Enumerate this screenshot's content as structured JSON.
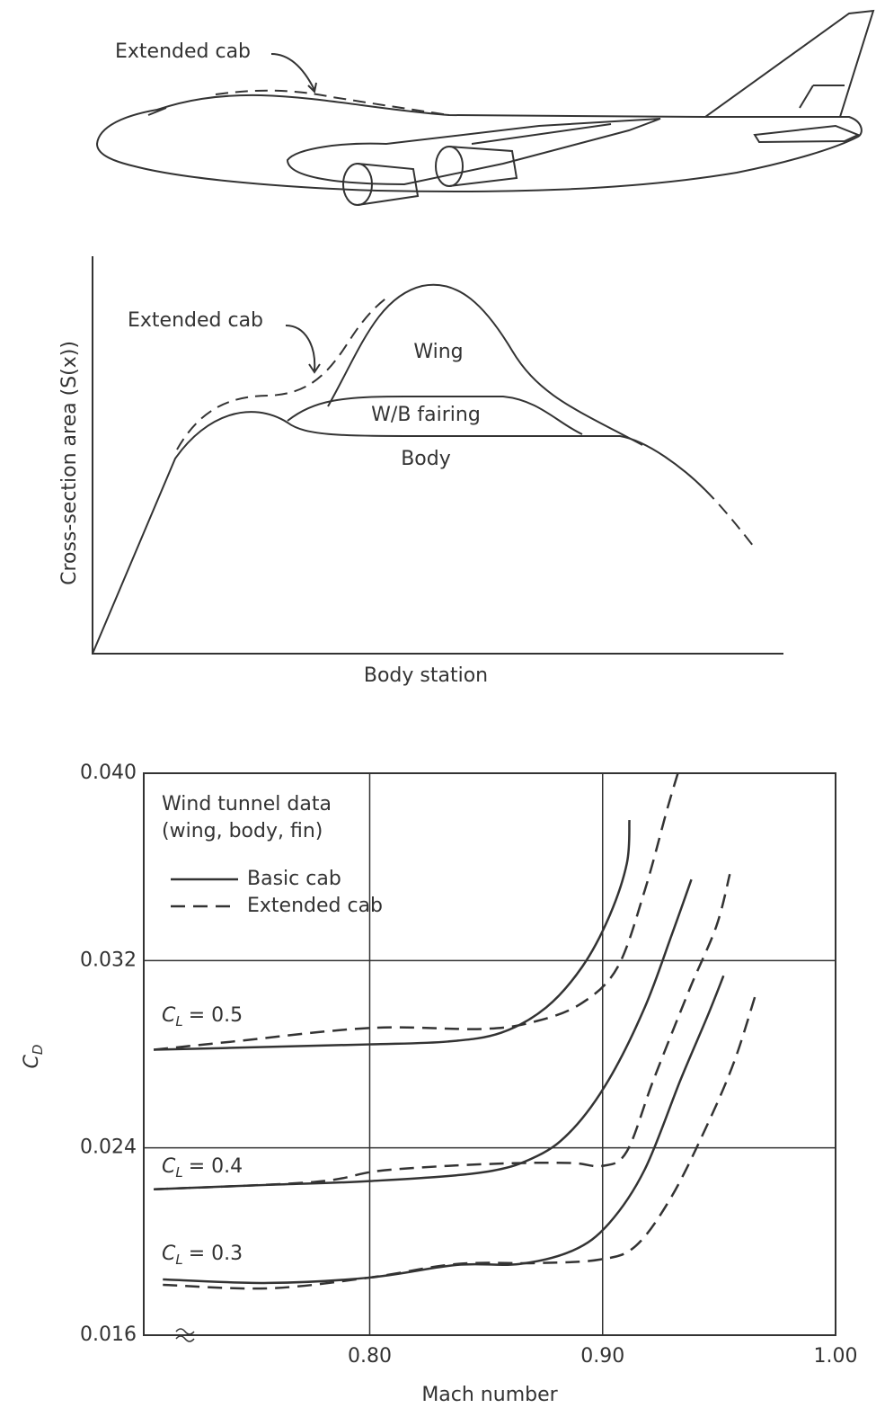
{
  "aircraft": {
    "label": "Extended cab"
  },
  "area_diagram": {
    "y_label": "Cross-section area (S(x))",
    "x_label": "Body station",
    "labels": {
      "extended_cab": "Extended cab",
      "wing": "Wing",
      "fairing": "W/B fairing",
      "body": "Body"
    }
  },
  "chart_data": {
    "type": "line",
    "x_label": "Mach number",
    "y_label": {
      "symbol": "C",
      "subscript": "D"
    },
    "annotation": [
      "Wind tunnel data",
      "(wing, body, fin)"
    ],
    "xlim": [
      0.703,
      1.0
    ],
    "ylim": [
      0.016,
      0.04
    ],
    "xticks": [
      {
        "value": 0.8,
        "label": "0.80"
      },
      {
        "value": 0.9,
        "label": "0.90"
      },
      {
        "value": 1.0,
        "label": "1.00"
      }
    ],
    "yticks": [
      {
        "value": 0.016,
        "label": "0.016"
      },
      {
        "value": 0.024,
        "label": "0.024"
      },
      {
        "value": 0.032,
        "label": "0.032"
      },
      {
        "value": 0.04,
        "label": "0.040"
      }
    ],
    "grid": true,
    "color": "#333333",
    "curve_labels": [
      {
        "symbol": "C",
        "subscript": "L",
        "text": "= 0.5"
      },
      {
        "symbol": "C",
        "subscript": "L",
        "text": "= 0.4"
      },
      {
        "symbol": "C",
        "subscript": "L",
        "text": "= 0.3"
      }
    ],
    "series": [
      {
        "name": "Basic cab",
        "dashed": false,
        "x": [
          0.7073,
          0.7565,
          0.8,
          0.8335,
          0.8565,
          0.8758,
          0.8912,
          0.9027,
          0.9104,
          0.9115
        ],
        "values": [
          0.02819,
          0.02831,
          0.02842,
          0.02854,
          0.02892,
          0.03,
          0.03173,
          0.03385,
          0.03615,
          0.038
        ]
      },
      {
        "name": "Extended cab",
        "dashed": true,
        "x": [
          0.7073,
          0.7412,
          0.8,
          0.8488,
          0.8719,
          0.8912,
          0.9065,
          0.9181,
          0.9277,
          0.9323
        ],
        "values": [
          0.02819,
          0.02854,
          0.02912,
          0.02908,
          0.02942,
          0.03019,
          0.03173,
          0.035,
          0.03846,
          0.04
        ]
      },
      {
        "name": "Basic cab",
        "dashed": false,
        "x": [
          0.7073,
          0.7565,
          0.8,
          0.8488,
          0.8719,
          0.8873,
          0.9027,
          0.9181,
          0.9296,
          0.9381
        ],
        "values": [
          0.02223,
          0.02242,
          0.02258,
          0.02296,
          0.02365,
          0.02481,
          0.02692,
          0.03,
          0.03308,
          0.03546
        ]
      },
      {
        "name": "Extended cab",
        "dashed": true,
        "x": [
          0.7073,
          0.7758,
          0.8027,
          0.8335,
          0.8642,
          0.8873,
          0.9,
          0.9104,
          0.9219,
          0.9373,
          0.9488,
          0.9546
        ],
        "values": [
          0.02223,
          0.02254,
          0.023,
          0.02323,
          0.02335,
          0.02335,
          0.02323,
          0.02385,
          0.02692,
          0.03077,
          0.03346,
          0.03569
        ]
      },
      {
        "name": "Basic cab",
        "dashed": false,
        "x": [
          0.7112,
          0.7565,
          0.8,
          0.8373,
          0.8642,
          0.8873,
          0.9027,
          0.9181,
          0.9335,
          0.945,
          0.9519
        ],
        "values": [
          0.01838,
          0.01823,
          0.01846,
          0.019,
          0.01904,
          0.01962,
          0.02077,
          0.02308,
          0.02692,
          0.02962,
          0.03135
        ]
      },
      {
        "name": "Extended cab",
        "dashed": true,
        "x": [
          0.7112,
          0.7565,
          0.8,
          0.8373,
          0.8719,
          0.8988,
          0.9142,
          0.9296,
          0.945,
          0.9565,
          0.9654
        ],
        "values": [
          0.01815,
          0.018,
          0.01846,
          0.01904,
          0.01908,
          0.01923,
          0.01981,
          0.02192,
          0.025,
          0.02769,
          0.03046
        ]
      }
    ]
  }
}
